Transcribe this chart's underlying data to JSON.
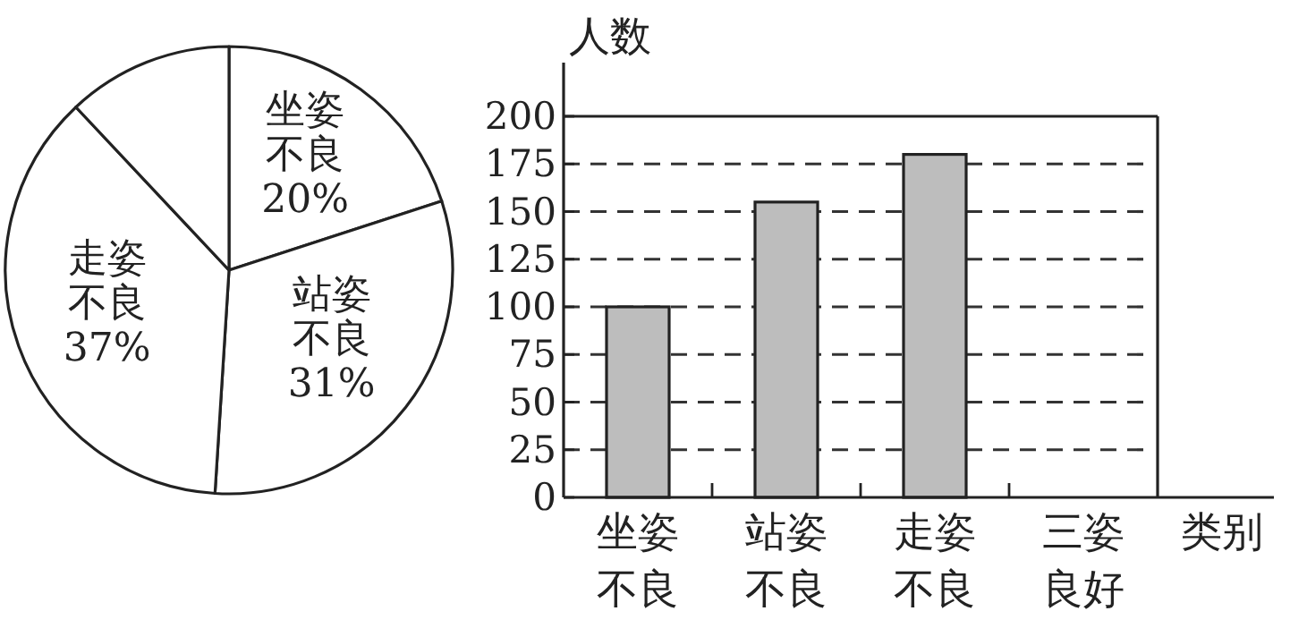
{
  "chart_data": [
    {
      "type": "pie",
      "categories": [
        "坐姿不良",
        "站姿不良",
        "走姿不良",
        null
      ],
      "values": [
        20,
        31,
        37,
        12
      ],
      "value_labels": [
        "20%",
        "31%",
        "37%",
        null
      ],
      "colors": [
        "#ffffff",
        "#ffffff",
        "#ffffff",
        "#ffffff"
      ]
    },
    {
      "type": "bar",
      "categories": [
        "坐姿不良",
        "站姿不良",
        "走姿不良",
        "三姿良好"
      ],
      "values": [
        100,
        155,
        180,
        null
      ],
      "color": "#bdbdbd",
      "ylim": [
        0,
        200
      ],
      "yticks": [
        0,
        25,
        50,
        75,
        100,
        125,
        150,
        175,
        200
      ],
      "grid": "y",
      "ylabel": "人数",
      "xlabel": "类别"
    }
  ]
}
